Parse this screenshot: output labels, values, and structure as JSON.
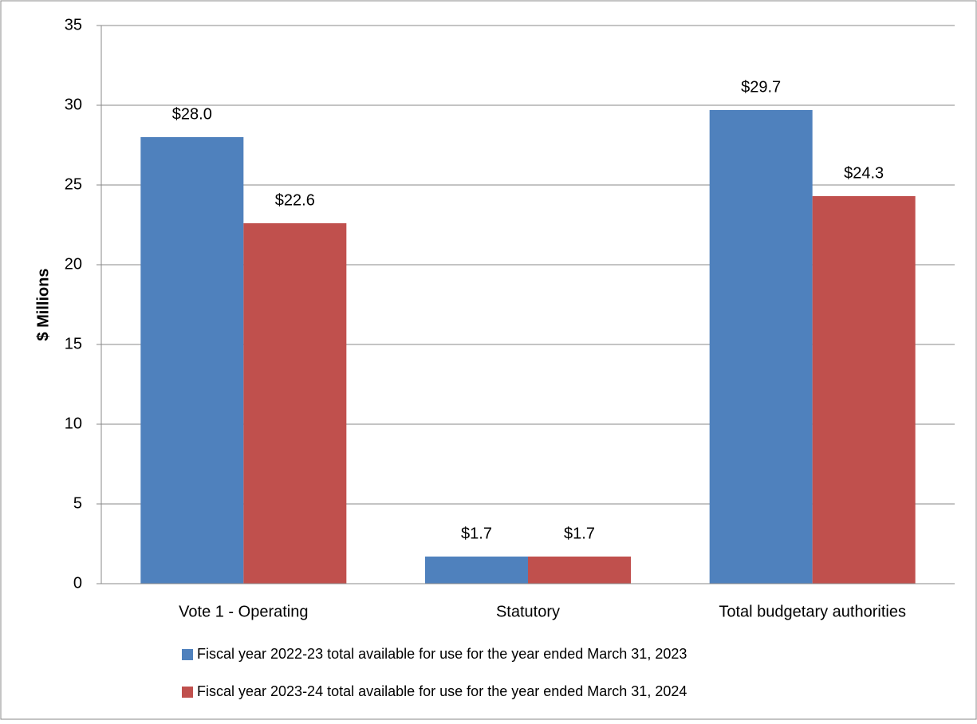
{
  "chart_data": {
    "type": "bar",
    "y_label": "$ Millions",
    "categories": [
      "Vote 1 - Operating",
      "Statutory",
      "Total budgetary authorities"
    ],
    "series": [
      {
        "name": "Fiscal year 2022-23 total available for use for the year ended March 31, 2023",
        "color": "#4f81bd",
        "values": [
          28.0,
          1.7,
          29.7
        ],
        "value_labels": [
          "$28.0",
          "$1.7",
          "$29.7"
        ]
      },
      {
        "name": "Fiscal year 2023-24 total available for use for the year ended March 31, 2024",
        "color": "#c0504d",
        "values": [
          22.6,
          1.7,
          24.3
        ],
        "value_labels": [
          "$22.6",
          "$1.7",
          "$24.3"
        ]
      }
    ],
    "ylim": [
      0,
      35
    ],
    "yticks": [
      0,
      5,
      10,
      15,
      20,
      25,
      30,
      35
    ],
    "grid": true,
    "legend": "bottom"
  }
}
